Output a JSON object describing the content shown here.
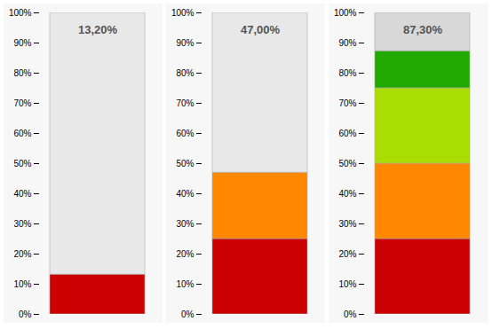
{
  "chart_data": [
    {
      "type": "bar",
      "stacked": true,
      "categories": [
        null
      ],
      "series": [
        {
          "color": "#cc0000",
          "values": [
            13.2
          ]
        },
        {
          "color": "#e8e8e8",
          "values": [
            86.8
          ]
        }
      ],
      "annotations": [
        "13,20%"
      ],
      "ylim": [
        0,
        100
      ],
      "yticks": [
        {
          "value": 0,
          "label": "0%"
        },
        {
          "value": 10,
          "label": "10%"
        },
        {
          "value": 20,
          "label": "20%"
        },
        {
          "value": 30,
          "label": "30%"
        },
        {
          "value": 40,
          "label": "40%"
        },
        {
          "value": 50,
          "label": "50%"
        },
        {
          "value": 60,
          "label": "60%"
        },
        {
          "value": 70,
          "label": "70%"
        },
        {
          "value": 80,
          "label": "80%"
        },
        {
          "value": 90,
          "label": "90%"
        },
        {
          "value": 100,
          "label": "100%"
        }
      ],
      "tick_labels": "y",
      "grid": false
    },
    {
      "type": "bar",
      "stacked": true,
      "categories": [
        null
      ],
      "series": [
        {
          "color": "#cc0000",
          "values": [
            25.0
          ]
        },
        {
          "color": "#ff8800",
          "values": [
            22.0
          ]
        },
        {
          "color": "#e8e8e8",
          "values": [
            53.0
          ]
        }
      ],
      "annotations": [
        "47,00%"
      ],
      "ylim": [
        0,
        100
      ],
      "yticks": [
        {
          "value": 0,
          "label": "0%"
        },
        {
          "value": 10,
          "label": "10%"
        },
        {
          "value": 20,
          "label": "20%"
        },
        {
          "value": 30,
          "label": "30%"
        },
        {
          "value": 40,
          "label": "40%"
        },
        {
          "value": 50,
          "label": "50%"
        },
        {
          "value": 60,
          "label": "60%"
        },
        {
          "value": 70,
          "label": "70%"
        },
        {
          "value": 80,
          "label": "80%"
        },
        {
          "value": 90,
          "label": "90%"
        },
        {
          "value": 100,
          "label": "100%"
        }
      ],
      "tick_labels": "y",
      "grid": false
    },
    {
      "type": "bar",
      "stacked": true,
      "categories": [
        null
      ],
      "series": [
        {
          "color": "#cc0000",
          "values": [
            25.0
          ]
        },
        {
          "color": "#ff8800",
          "values": [
            25.0
          ]
        },
        {
          "color": "#aadd00",
          "values": [
            25.0
          ]
        },
        {
          "color": "#22aa00",
          "values": [
            12.3
          ]
        },
        {
          "color": "#d8d8d8",
          "values": [
            12.7
          ]
        }
      ],
      "annotations": [
        "87,30%"
      ],
      "ylim": [
        0,
        100
      ],
      "yticks": [
        {
          "value": 0,
          "label": "0%"
        },
        {
          "value": 10,
          "label": "10%"
        },
        {
          "value": 20,
          "label": "20%"
        },
        {
          "value": 30,
          "label": "30%"
        },
        {
          "value": 40,
          "label": "40%"
        },
        {
          "value": 50,
          "label": "50%"
        },
        {
          "value": 60,
          "label": "60%"
        },
        {
          "value": 70,
          "label": "70%"
        },
        {
          "value": 80,
          "label": "80%"
        },
        {
          "value": 90,
          "label": "90%"
        },
        {
          "value": 100,
          "label": "100%"
        }
      ],
      "tick_labels": "y",
      "grid": false
    }
  ]
}
